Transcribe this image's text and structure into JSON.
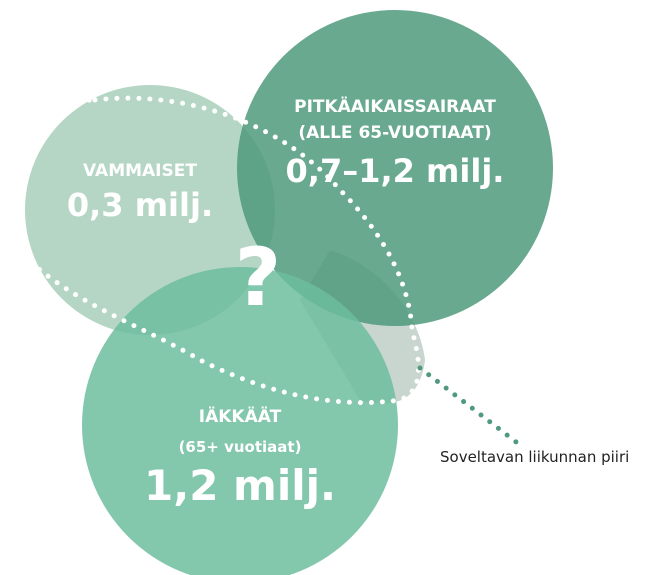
{
  "nodes": [
    {
      "title": "VAMMAISET",
      "value": "0,3 milj."
    },
    {
      "title": "PITKÄAIKAISSAIRAAT",
      "subtitle": "(ALLE 65-VUOTIAAT)",
      "value": "0,7–1,2 milj."
    },
    {
      "title": "IÄKKÄÄT",
      "subtitle": "(65+ vuotiaat)",
      "value": "1,2 milj."
    }
  ],
  "center": "?",
  "legend": "Soveltavan liikunnan piiri"
}
